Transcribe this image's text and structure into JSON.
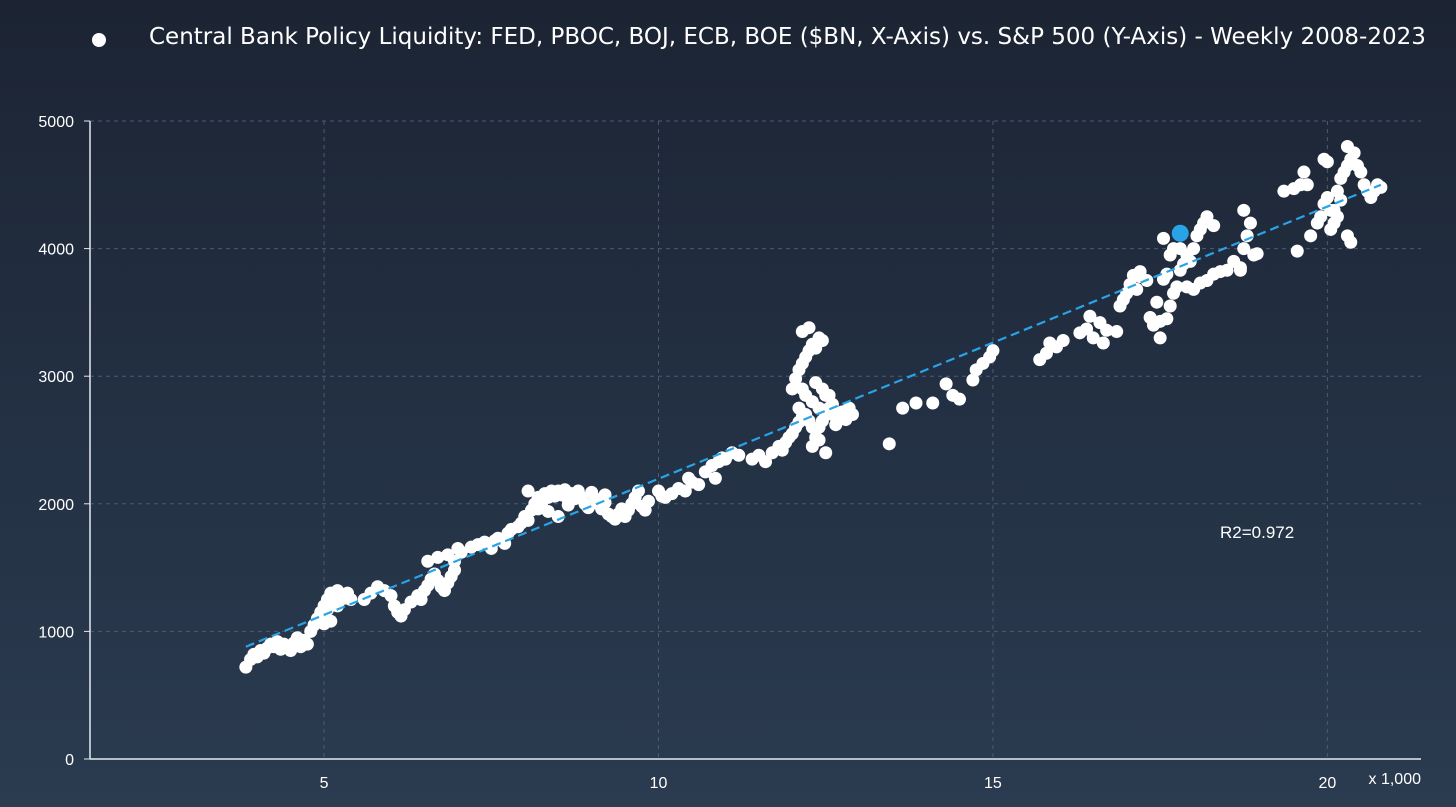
{
  "legend": {
    "marker_color": "#ffffff",
    "label": "Central Bank Policy Liquidity: FED, PBOC, BOJ, ECB, BOE ($BN, X-Axis) vs. S&P 500 (Y-Axis) - Weekly 2008-2023"
  },
  "annotation": {
    "r2_text": "R2=0.972"
  },
  "x_unit_label": "x 1,000",
  "colors": {
    "points": "#ffffff",
    "trend": "#29a3e8",
    "highlight": "#29a3e8",
    "grid": "#4d5b6e",
    "axis": "#e6e9ee"
  },
  "chart_data": {
    "type": "scatter",
    "title": "",
    "xlabel": "",
    "ylabel": "",
    "xlim": [
      1.5,
      21.4
    ],
    "ylim": [
      0,
      5000
    ],
    "x_ticks": [
      5,
      10,
      15,
      20
    ],
    "y_ticks": [
      0,
      1000,
      2000,
      3000,
      4000,
      5000
    ],
    "grid": true,
    "legend_position": "top",
    "series": [
      {
        "name": "Central Bank Policy Liquidity: FED, PBOC, BOJ, ECB, BOE ($BN, X-Axis) vs. S&P 500 (Y-Axis) - Weekly 2008-2023",
        "points": [
          [
            3.83,
            720
          ],
          [
            3.9,
            780
          ],
          [
            3.95,
            820
          ],
          [
            4.0,
            800
          ],
          [
            4.05,
            850
          ],
          [
            4.1,
            830
          ],
          [
            4.15,
            870
          ],
          [
            4.2,
            900
          ],
          [
            4.25,
            880
          ],
          [
            4.3,
            920
          ],
          [
            4.35,
            860
          ],
          [
            4.4,
            900
          ],
          [
            4.5,
            850
          ],
          [
            4.55,
            910
          ],
          [
            4.6,
            950
          ],
          [
            4.65,
            880
          ],
          [
            4.7,
            930
          ],
          [
            4.75,
            900
          ],
          [
            4.8,
            1000
          ],
          [
            4.85,
            1050
          ],
          [
            4.9,
            1100
          ],
          [
            4.95,
            1150
          ],
          [
            5.0,
            1200
          ],
          [
            5.05,
            1250
          ],
          [
            5.1,
            1300
          ],
          [
            5.15,
            1270
          ],
          [
            5.2,
            1320
          ],
          [
            5.3,
            1260
          ],
          [
            5.35,
            1300
          ],
          [
            5.4,
            1250
          ],
          [
            5.1,
            1080
          ],
          [
            5.0,
            1060
          ],
          [
            4.95,
            1100
          ],
          [
            5.05,
            1170
          ],
          [
            5.2,
            1200
          ],
          [
            5.6,
            1250
          ],
          [
            5.7,
            1300
          ],
          [
            5.8,
            1350
          ],
          [
            5.9,
            1320
          ],
          [
            6.0,
            1280
          ],
          [
            6.05,
            1200
          ],
          [
            6.1,
            1150
          ],
          [
            6.15,
            1120
          ],
          [
            6.2,
            1170
          ],
          [
            6.3,
            1230
          ],
          [
            6.4,
            1280
          ],
          [
            6.45,
            1250
          ],
          [
            6.5,
            1320
          ],
          [
            6.55,
            1360
          ],
          [
            6.6,
            1410
          ],
          [
            6.65,
            1450
          ],
          [
            6.7,
            1400
          ],
          [
            6.75,
            1350
          ],
          [
            6.8,
            1320
          ],
          [
            6.85,
            1380
          ],
          [
            6.9,
            1430
          ],
          [
            6.95,
            1480
          ],
          [
            6.55,
            1550
          ],
          [
            6.7,
            1580
          ],
          [
            6.85,
            1600
          ],
          [
            6.95,
            1550
          ],
          [
            7.0,
            1650
          ],
          [
            7.05,
            1620
          ],
          [
            7.2,
            1660
          ],
          [
            7.3,
            1680
          ],
          [
            7.4,
            1700
          ],
          [
            7.5,
            1650
          ],
          [
            7.55,
            1710
          ],
          [
            7.6,
            1730
          ],
          [
            7.7,
            1690
          ],
          [
            7.75,
            1770
          ],
          [
            7.8,
            1800
          ],
          [
            7.9,
            1820
          ],
          [
            7.95,
            1850
          ],
          [
            8.0,
            1900
          ],
          [
            8.05,
            1870
          ],
          [
            8.1,
            1950
          ],
          [
            8.15,
            2000
          ],
          [
            8.2,
            2050
          ],
          [
            8.25,
            1990
          ],
          [
            8.3,
            2080
          ],
          [
            8.35,
            2050
          ],
          [
            8.4,
            2100
          ],
          [
            8.45,
            2060
          ],
          [
            8.5,
            2100
          ],
          [
            8.55,
            2070
          ],
          [
            8.6,
            2110
          ],
          [
            8.65,
            2030
          ],
          [
            8.7,
            2080
          ],
          [
            8.75,
            2040
          ],
          [
            8.8,
            2100
          ],
          [
            8.85,
            2050
          ],
          [
            8.9,
            2000
          ],
          [
            8.95,
            1970
          ],
          [
            9.0,
            2090
          ],
          [
            9.05,
            2040
          ],
          [
            9.1,
            2000
          ],
          [
            9.15,
            1960
          ],
          [
            9.2,
            2010
          ],
          [
            9.25,
            1920
          ],
          [
            9.3,
            1900
          ],
          [
            9.35,
            1880
          ],
          [
            9.4,
            1920
          ],
          [
            9.45,
            1960
          ],
          [
            9.5,
            1900
          ],
          [
            9.55,
            1950
          ],
          [
            9.6,
            2000
          ],
          [
            9.65,
            2050
          ],
          [
            9.7,
            2100
          ],
          [
            9.75,
            1980
          ],
          [
            9.8,
            1950
          ],
          [
            9.85,
            2020
          ],
          [
            8.05,
            2100
          ],
          [
            8.2,
            1960
          ],
          [
            8.35,
            1940
          ],
          [
            8.5,
            1900
          ],
          [
            8.65,
            1990
          ],
          [
            9.2,
            2070
          ],
          [
            10.0,
            2100
          ],
          [
            10.05,
            2060
          ],
          [
            10.1,
            2050
          ],
          [
            10.2,
            2080
          ],
          [
            10.3,
            2120
          ],
          [
            10.4,
            2100
          ],
          [
            10.45,
            2200
          ],
          [
            10.5,
            2170
          ],
          [
            10.6,
            2150
          ],
          [
            10.7,
            2250
          ],
          [
            10.8,
            2300
          ],
          [
            10.85,
            2200
          ],
          [
            10.9,
            2330
          ],
          [
            10.95,
            2360
          ],
          [
            11.0,
            2350
          ],
          [
            11.1,
            2400
          ],
          [
            11.2,
            2380
          ],
          [
            11.4,
            2350
          ],
          [
            11.5,
            2380
          ],
          [
            11.6,
            2330
          ],
          [
            11.7,
            2400
          ],
          [
            11.8,
            2450
          ],
          [
            11.85,
            2420
          ],
          [
            11.9,
            2480
          ],
          [
            11.95,
            2520
          ],
          [
            12.0,
            2550
          ],
          [
            12.05,
            2600
          ],
          [
            12.1,
            2640
          ],
          [
            12.15,
            2680
          ],
          [
            12.2,
            2700
          ],
          [
            12.25,
            2650
          ],
          [
            12.3,
            2600
          ],
          [
            12.35,
            2520
          ],
          [
            12.4,
            2600
          ],
          [
            12.45,
            2650
          ],
          [
            12.5,
            2700
          ],
          [
            12.55,
            2750
          ],
          [
            12.6,
            2700
          ],
          [
            12.65,
            2620
          ],
          [
            12.7,
            2680
          ],
          [
            12.75,
            2720
          ],
          [
            12.8,
            2660
          ],
          [
            12.85,
            2750
          ],
          [
            12.9,
            2700
          ],
          [
            12.0,
            2900
          ],
          [
            12.05,
            2980
          ],
          [
            12.1,
            3050
          ],
          [
            12.15,
            3100
          ],
          [
            12.2,
            3150
          ],
          [
            12.25,
            3200
          ],
          [
            12.3,
            3250
          ],
          [
            12.35,
            3220
          ],
          [
            12.4,
            3300
          ],
          [
            12.45,
            3280
          ],
          [
            12.15,
            3350
          ],
          [
            12.25,
            3380
          ],
          [
            12.2,
            2850
          ],
          [
            12.3,
            2800
          ],
          [
            12.4,
            2750
          ],
          [
            12.5,
            2850
          ],
          [
            12.6,
            2780
          ],
          [
            12.1,
            2750
          ],
          [
            12.15,
            2900
          ],
          [
            12.35,
            2950
          ],
          [
            12.45,
            2900
          ],
          [
            12.55,
            2850
          ],
          [
            12.4,
            2500
          ],
          [
            12.5,
            2400
          ],
          [
            12.3,
            2450
          ],
          [
            13.45,
            2470
          ],
          [
            13.65,
            2750
          ],
          [
            13.85,
            2790
          ],
          [
            14.1,
            2790
          ],
          [
            14.3,
            2940
          ],
          [
            14.4,
            2850
          ],
          [
            14.5,
            2820
          ],
          [
            14.7,
            2970
          ],
          [
            14.75,
            3050
          ],
          [
            14.85,
            3100
          ],
          [
            14.95,
            3150
          ],
          [
            15.0,
            3200
          ],
          [
            15.7,
            3130
          ],
          [
            15.8,
            3180
          ],
          [
            15.85,
            3260
          ],
          [
            15.95,
            3230
          ],
          [
            16.05,
            3280
          ],
          [
            16.3,
            3340
          ],
          [
            16.4,
            3370
          ],
          [
            16.45,
            3470
          ],
          [
            16.5,
            3300
          ],
          [
            16.6,
            3420
          ],
          [
            16.65,
            3260
          ],
          [
            16.7,
            3360
          ],
          [
            16.85,
            3350
          ],
          [
            16.9,
            3550
          ],
          [
            16.95,
            3600
          ],
          [
            17.0,
            3650
          ],
          [
            17.05,
            3720
          ],
          [
            17.1,
            3790
          ],
          [
            17.15,
            3680
          ],
          [
            17.2,
            3780
          ],
          [
            17.3,
            3750
          ],
          [
            17.35,
            3460
          ],
          [
            17.4,
            3400
          ],
          [
            17.45,
            3580
          ],
          [
            17.5,
            3430
          ],
          [
            17.55,
            3760
          ],
          [
            17.6,
            3450
          ],
          [
            17.65,
            3550
          ],
          [
            17.7,
            3650
          ],
          [
            17.75,
            3700
          ],
          [
            17.8,
            3830
          ],
          [
            17.85,
            3880
          ],
          [
            17.9,
            3950
          ],
          [
            17.95,
            3900
          ],
          [
            18.0,
            4000
          ],
          [
            18.05,
            4100
          ],
          [
            18.1,
            4150
          ],
          [
            18.15,
            4200
          ],
          [
            18.2,
            4250
          ],
          [
            18.3,
            4180
          ],
          [
            17.5,
            3300
          ],
          [
            17.2,
            3820
          ],
          [
            17.6,
            3800
          ],
          [
            17.65,
            3950
          ],
          [
            17.7,
            4000
          ],
          [
            17.8,
            4000
          ],
          [
            17.55,
            4080
          ],
          [
            17.9,
            3700
          ],
          [
            18.0,
            3680
          ],
          [
            18.1,
            3730
          ],
          [
            18.2,
            3750
          ],
          [
            18.3,
            3800
          ],
          [
            18.4,
            3820
          ],
          [
            18.5,
            3830
          ],
          [
            18.6,
            3900
          ],
          [
            18.7,
            3850
          ],
          [
            18.75,
            4000
          ],
          [
            18.8,
            4100
          ],
          [
            18.85,
            4200
          ],
          [
            18.9,
            3950
          ],
          [
            18.95,
            3960
          ],
          [
            18.75,
            4300
          ],
          [
            18.7,
            3830
          ],
          [
            19.35,
            4450
          ],
          [
            19.5,
            4470
          ],
          [
            19.6,
            4500
          ],
          [
            19.65,
            4600
          ],
          [
            19.7,
            4500
          ],
          [
            19.75,
            4100
          ],
          [
            19.85,
            4200
          ],
          [
            19.9,
            4250
          ],
          [
            19.95,
            4350
          ],
          [
            20.0,
            4400
          ],
          [
            20.05,
            4300
          ],
          [
            20.1,
            4200
          ],
          [
            20.15,
            4250
          ],
          [
            20.2,
            4550
          ],
          [
            20.25,
            4600
          ],
          [
            20.3,
            4650
          ],
          [
            20.35,
            4700
          ],
          [
            20.4,
            4750
          ],
          [
            20.45,
            4650
          ],
          [
            20.5,
            4600
          ],
          [
            20.55,
            4500
          ],
          [
            20.6,
            4450
          ],
          [
            20.65,
            4400
          ],
          [
            20.7,
            4450
          ],
          [
            20.75,
            4500
          ],
          [
            20.8,
            4480
          ],
          [
            19.95,
            4700
          ],
          [
            20.0,
            4680
          ],
          [
            19.55,
            3980
          ],
          [
            20.3,
            4100
          ],
          [
            20.35,
            4050
          ],
          [
            20.3,
            4800
          ],
          [
            20.15,
            4450
          ],
          [
            20.2,
            4380
          ],
          [
            20.1,
            4300
          ],
          [
            20.05,
            4150
          ]
        ]
      }
    ],
    "trendline": {
      "x": [
        3.83,
        20.8
      ],
      "y": [
        880,
        4500
      ],
      "style": "dashed"
    },
    "highlight_point": {
      "x": 17.8,
      "y": 4120
    },
    "r2": 0.972
  }
}
